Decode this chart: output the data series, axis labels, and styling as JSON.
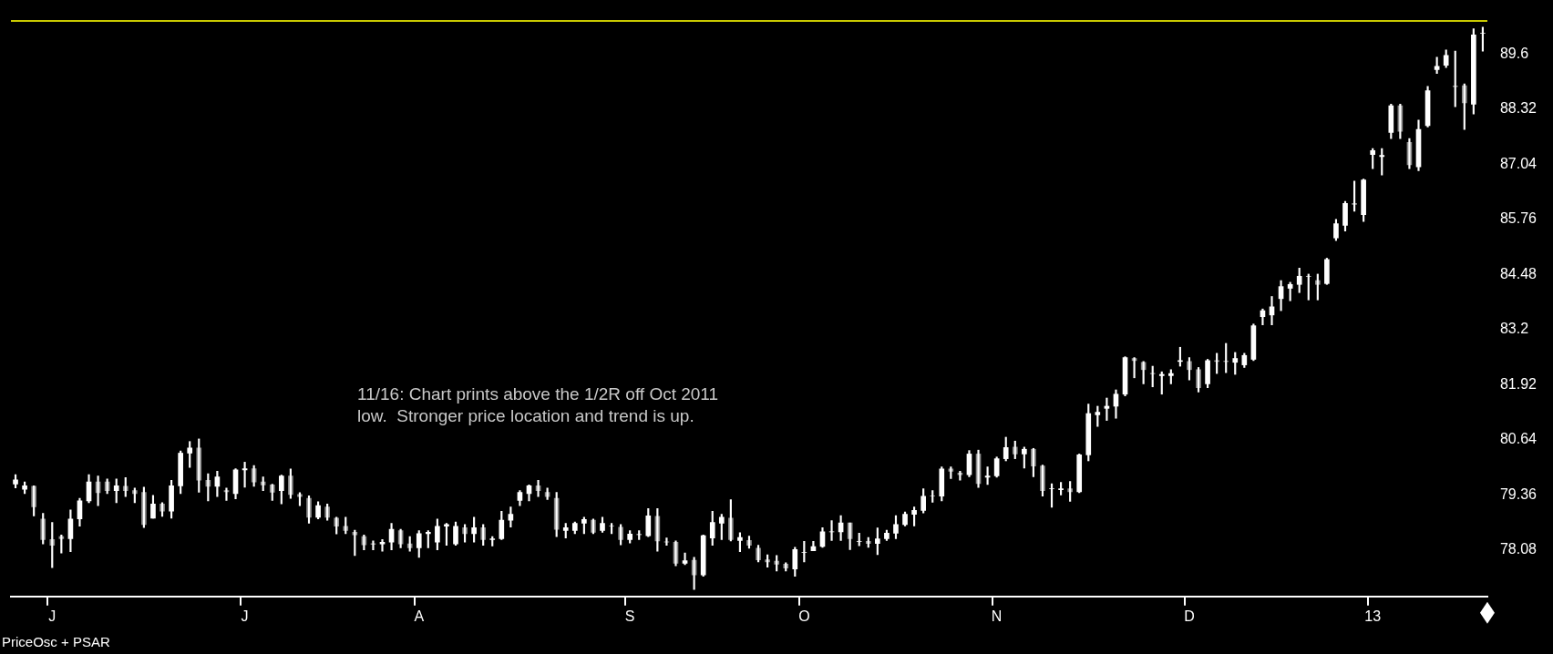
{
  "chart_data": {
    "type": "candlestick",
    "color": "#ffffff",
    "categories": [
      null,
      null,
      null,
      null,
      "J",
      null,
      null,
      null,
      null,
      null,
      null,
      null,
      null,
      null,
      null,
      null,
      null,
      null,
      null,
      null,
      null,
      null,
      null,
      null,
      null,
      "J",
      null,
      null,
      null,
      null,
      null,
      null,
      null,
      null,
      null,
      null,
      null,
      null,
      null,
      null,
      null,
      null,
      null,
      null,
      "A",
      null,
      null,
      null,
      null,
      null,
      null,
      null,
      null,
      null,
      null,
      null,
      null,
      null,
      null,
      null,
      null,
      null,
      null,
      null,
      null,
      null,
      null,
      "S",
      null,
      null,
      null,
      null,
      null,
      null,
      null,
      null,
      null,
      null,
      null,
      null,
      null,
      null,
      null,
      null,
      null,
      null,
      "O",
      null,
      null,
      null,
      null,
      null,
      null,
      null,
      null,
      null,
      null,
      null,
      null,
      null,
      null,
      null,
      null,
      null,
      null,
      null,
      null,
      "N",
      null,
      null,
      null,
      null,
      null,
      null,
      null,
      null,
      null,
      null,
      null,
      null,
      null,
      null,
      null,
      null,
      null,
      null,
      null,
      null,
      "D",
      null,
      null,
      null,
      null,
      null,
      null,
      null,
      null,
      null,
      null,
      null,
      null,
      null,
      null,
      null,
      null,
      null,
      null,
      null,
      "13",
      null,
      null,
      null,
      null,
      null,
      null,
      null,
      null,
      null,
      null,
      null,
      null
    ],
    "ohlc": [
      [
        79.61,
        79.83,
        79.52,
        79.71
      ],
      [
        79.49,
        79.66,
        79.39,
        79.57
      ],
      [
        79.56,
        79.57,
        78.87,
        79.08
      ],
      [
        78.8,
        78.93,
        78.22,
        78.32
      ],
      [
        78.32,
        78.72,
        77.67,
        78.19
      ],
      [
        78.39,
        78.43,
        78.01,
        78.34
      ],
      [
        78.34,
        79.01,
        78.04,
        78.8
      ],
      [
        78.8,
        79.28,
        78.63,
        79.22
      ],
      [
        79.22,
        79.83,
        79.18,
        79.66
      ],
      [
        79.66,
        79.8,
        79.11,
        79.41
      ],
      [
        79.66,
        79.73,
        79.39,
        79.46
      ],
      [
        79.46,
        79.73,
        79.18,
        79.57
      ],
      [
        79.56,
        79.76,
        79.32,
        79.46
      ],
      [
        79.46,
        79.52,
        79.18,
        79.39
      ],
      [
        79.42,
        79.54,
        78.6,
        78.67
      ],
      [
        78.82,
        79.35,
        78.82,
        79.15
      ],
      [
        79.15,
        79.18,
        78.86,
        78.98
      ],
      [
        78.98,
        79.7,
        78.82,
        79.57
      ],
      [
        79.57,
        80.38,
        79.39,
        80.33
      ],
      [
        80.33,
        80.6,
        80.0,
        80.45
      ],
      [
        80.45,
        80.66,
        79.42,
        79.7
      ],
      [
        79.7,
        79.85,
        79.22,
        79.56
      ],
      [
        79.56,
        79.91,
        79.32,
        79.78
      ],
      [
        79.46,
        79.52,
        79.23,
        79.43
      ],
      [
        79.39,
        79.97,
        79.27,
        79.94
      ],
      [
        79.94,
        80.12,
        79.54,
        79.97
      ],
      [
        79.97,
        80.04,
        79.56,
        79.66
      ],
      [
        79.66,
        79.78,
        79.46,
        79.59
      ],
      [
        79.59,
        79.61,
        79.23,
        79.42
      ],
      [
        79.46,
        79.82,
        79.15,
        79.8
      ],
      [
        79.8,
        79.96,
        79.28,
        79.37
      ],
      [
        79.37,
        79.41,
        79.11,
        79.32
      ],
      [
        79.28,
        79.34,
        78.7,
        78.84
      ],
      [
        78.84,
        79.2,
        78.8,
        79.11
      ],
      [
        79.08,
        79.15,
        78.77,
        78.84
      ],
      [
        78.82,
        78.84,
        78.45,
        78.63
      ],
      [
        78.63,
        78.84,
        78.46,
        78.53
      ],
      [
        78.49,
        78.54,
        77.95,
        78.43
      ],
      [
        78.39,
        78.43,
        78.08,
        78.2
      ],
      [
        78.22,
        78.29,
        78.08,
        78.22
      ],
      [
        78.22,
        78.32,
        78.05,
        78.26
      ],
      [
        78.26,
        78.7,
        78.08,
        78.56
      ],
      [
        78.53,
        78.56,
        78.13,
        78.22
      ],
      [
        78.22,
        78.39,
        78.05,
        78.13
      ],
      [
        78.13,
        78.53,
        77.91,
        78.46
      ],
      [
        78.46,
        78.53,
        78.13,
        78.49
      ],
      [
        78.26,
        78.8,
        78.08,
        78.63
      ],
      [
        78.63,
        78.7,
        78.19,
        78.67
      ],
      [
        78.22,
        78.73,
        78.19,
        78.63
      ],
      [
        78.6,
        78.67,
        78.26,
        78.46
      ],
      [
        78.46,
        78.84,
        78.26,
        78.6
      ],
      [
        78.6,
        78.67,
        78.19,
        78.32
      ],
      [
        78.32,
        78.39,
        78.17,
        78.34
      ],
      [
        78.34,
        78.98,
        78.32,
        78.77
      ],
      [
        78.77,
        79.08,
        78.61,
        78.91
      ],
      [
        79.23,
        79.46,
        79.11,
        79.42
      ],
      [
        79.39,
        79.59,
        79.22,
        79.57
      ],
      [
        79.57,
        79.7,
        79.32,
        79.46
      ],
      [
        79.42,
        79.52,
        79.25,
        79.32
      ],
      [
        79.28,
        79.42,
        78.39,
        78.56
      ],
      [
        78.53,
        78.7,
        78.36,
        78.6
      ],
      [
        78.53,
        78.73,
        78.46,
        78.7
      ],
      [
        78.7,
        78.84,
        78.46,
        78.79
      ],
      [
        78.77,
        78.8,
        78.46,
        78.49
      ],
      [
        78.53,
        78.84,
        78.49,
        78.7
      ],
      [
        78.63,
        78.7,
        78.46,
        78.63
      ],
      [
        78.61,
        78.67,
        78.2,
        78.32
      ],
      [
        78.32,
        78.53,
        78.24,
        78.45
      ],
      [
        78.45,
        78.53,
        78.32,
        78.43
      ],
      [
        78.41,
        79.04,
        78.39,
        78.87
      ],
      [
        78.86,
        79.04,
        78.05,
        78.29
      ],
      [
        78.27,
        78.36,
        78.19,
        78.26
      ],
      [
        78.26,
        78.29,
        77.71,
        77.77
      ],
      [
        77.77,
        78.01,
        77.74,
        77.83
      ],
      [
        77.84,
        77.91,
        77.16,
        77.5
      ],
      [
        77.5,
        78.43,
        77.47,
        78.41
      ],
      [
        78.36,
        78.98,
        78.19,
        78.72
      ],
      [
        78.7,
        78.91,
        78.32,
        78.84
      ],
      [
        78.82,
        79.25,
        78.29,
        78.32
      ],
      [
        78.3,
        78.48,
        78.04,
        78.37
      ],
      [
        78.3,
        78.4,
        78.12,
        78.19
      ],
      [
        78.12,
        78.19,
        77.8,
        77.85
      ],
      [
        77.85,
        77.97,
        77.68,
        77.8
      ],
      [
        77.82,
        77.95,
        77.59,
        77.75
      ],
      [
        77.75,
        77.78,
        77.59,
        77.66
      ],
      [
        77.64,
        78.14,
        77.47,
        78.09
      ],
      [
        78.02,
        78.28,
        77.8,
        78.02
      ],
      [
        78.06,
        78.28,
        78.06,
        78.16
      ],
      [
        78.16,
        78.6,
        78.14,
        78.5
      ],
      [
        78.5,
        78.76,
        78.3,
        78.5
      ],
      [
        78.5,
        78.88,
        78.3,
        78.71
      ],
      [
        78.71,
        78.71,
        78.09,
        78.34
      ],
      [
        78.28,
        78.47,
        78.18,
        78.28
      ],
      [
        78.28,
        78.37,
        78.14,
        78.23
      ],
      [
        78.23,
        78.59,
        77.97,
        78.34
      ],
      [
        78.34,
        78.54,
        78.3,
        78.47
      ],
      [
        78.47,
        78.88,
        78.34,
        78.67
      ],
      [
        78.67,
        78.96,
        78.64,
        78.91
      ],
      [
        78.91,
        79.08,
        78.64,
        79.0
      ],
      [
        79.0,
        79.5,
        78.94,
        79.33
      ],
      [
        79.33,
        79.46,
        79.19,
        79.33
      ],
      [
        79.33,
        80.01,
        79.22,
        79.96
      ],
      [
        79.96,
        80.01,
        79.74,
        79.91
      ],
      [
        79.87,
        79.91,
        79.7,
        79.83
      ],
      [
        79.83,
        80.39,
        79.78,
        80.31
      ],
      [
        80.31,
        80.4,
        79.53,
        79.62
      ],
      [
        79.77,
        80.01,
        79.6,
        79.8
      ],
      [
        79.8,
        80.24,
        79.77,
        80.2
      ],
      [
        80.2,
        80.7,
        80.15,
        80.46
      ],
      [
        80.47,
        80.61,
        80.2,
        80.31
      ],
      [
        80.31,
        80.47,
        79.98,
        80.42
      ],
      [
        80.42,
        80.44,
        79.78,
        80.03
      ],
      [
        80.03,
        80.05,
        79.33,
        79.46
      ],
      [
        79.5,
        79.62,
        79.07,
        79.5
      ],
      [
        79.48,
        79.65,
        79.36,
        79.5
      ],
      [
        79.5,
        79.67,
        79.21,
        79.43
      ],
      [
        79.43,
        80.31,
        79.41,
        80.29
      ],
      [
        80.29,
        81.47,
        80.15,
        81.25
      ],
      [
        81.22,
        81.42,
        80.95,
        81.28
      ],
      [
        81.37,
        81.61,
        81.09,
        81.42
      ],
      [
        81.42,
        81.8,
        81.14,
        81.7
      ],
      [
        81.7,
        82.57,
        81.66,
        82.55
      ],
      [
        82.53,
        82.55,
        82.08,
        82.48
      ],
      [
        82.44,
        82.46,
        81.94,
        82.27
      ],
      [
        82.18,
        82.35,
        81.87,
        82.18
      ],
      [
        82.13,
        82.22,
        81.7,
        82.16
      ],
      [
        82.13,
        82.27,
        81.94,
        82.18
      ],
      [
        82.46,
        82.79,
        82.35,
        82.48
      ],
      [
        82.46,
        82.55,
        82.03,
        82.27
      ],
      [
        82.27,
        82.32,
        81.75,
        81.85
      ],
      [
        81.94,
        82.51,
        81.85,
        82.48
      ],
      [
        82.48,
        82.65,
        82.18,
        82.46
      ],
      [
        82.46,
        82.88,
        82.2,
        82.46
      ],
      [
        82.44,
        82.67,
        82.16,
        82.53
      ],
      [
        82.38,
        82.65,
        82.32,
        82.6
      ],
      [
        82.51,
        83.33,
        82.48,
        83.29
      ],
      [
        83.5,
        83.68,
        83.31,
        83.64
      ],
      [
        83.54,
        83.97,
        83.31,
        83.73
      ],
      [
        83.92,
        84.34,
        83.64,
        84.2
      ],
      [
        84.16,
        84.3,
        83.87,
        84.25
      ],
      [
        84.25,
        84.63,
        84.06,
        84.44
      ],
      [
        84.44,
        84.49,
        83.89,
        84.44
      ],
      [
        84.34,
        84.49,
        83.89,
        84.25
      ],
      [
        84.27,
        84.86,
        84.25,
        84.83
      ],
      [
        85.33,
        85.76,
        85.27,
        85.66
      ],
      [
        85.62,
        86.18,
        85.49,
        86.13
      ],
      [
        86.13,
        86.65,
        85.95,
        86.11
      ],
      [
        85.87,
        86.7,
        85.71,
        86.68
      ],
      [
        87.27,
        87.41,
        86.94,
        87.36
      ],
      [
        87.22,
        87.41,
        86.79,
        87.25
      ],
      [
        87.78,
        88.44,
        87.64,
        88.4
      ],
      [
        88.4,
        88.44,
        87.64,
        87.81
      ],
      [
        87.55,
        87.64,
        86.94,
        87.03
      ],
      [
        86.98,
        88.07,
        86.89,
        87.85
      ],
      [
        87.94,
        88.85,
        87.91,
        88.75
      ],
      [
        89.24,
        89.53,
        89.15,
        89.32
      ],
      [
        89.34,
        89.7,
        89.29,
        89.57
      ],
      [
        88.85,
        89.67,
        88.38,
        88.85
      ],
      [
        88.87,
        88.91,
        87.85,
        88.47
      ],
      [
        88.44,
        90.19,
        88.21,
        90.05
      ],
      [
        90.09,
        90.23,
        89.67,
        90.09
      ]
    ],
    "colors": [
      "#ffffff",
      "#ffffff",
      "#8c8c8c",
      "#8c8c8c",
      "#8c8c8c",
      "#8c8c8c",
      "#ffffff",
      "#ffffff",
      "#ffffff",
      "#8c8c8c",
      "#8c8c8c",
      "#ffffff",
      "#8c8c8c",
      "#8c8c8c",
      "#8c8c8c",
      "#ffffff",
      "#8c8c8c",
      "#ffffff",
      "#ffffff",
      "#ffffff",
      "#8c8c8c",
      "#8c8c8c",
      "#ffffff",
      "#8c8c8c",
      "#ffffff",
      "#ffffff",
      "#8c8c8c",
      "#8c8c8c",
      "#8c8c8c",
      "#ffffff",
      "#8c8c8c",
      "#8c8c8c",
      "#8c8c8c",
      "#ffffff",
      "#8c8c8c",
      "#8c8c8c",
      "#8c8c8c",
      "#8c8c8c",
      "#8c8c8c",
      "#ffffff",
      "#ffffff",
      "#ffffff",
      "#8c8c8c",
      "#8c8c8c",
      "#ffffff",
      "#ffffff",
      "#ffffff",
      "#ffffff",
      "#ffffff",
      "#8c8c8c",
      "#ffffff",
      "#8c8c8c",
      "#ffffff",
      "#ffffff",
      "#ffffff",
      "#ffffff",
      "#ffffff",
      "#8c8c8c",
      "#8c8c8c",
      "#8c8c8c",
      "#ffffff",
      "#ffffff",
      "#ffffff",
      "#8c8c8c",
      "#ffffff",
      "#ffffff",
      "#8c8c8c",
      "#ffffff",
      "#8c8c8c",
      "#ffffff",
      "#8c8c8c",
      "#8c8c8c",
      "#8c8c8c",
      "#ffffff",
      "#8c8c8c",
      "#ffffff",
      "#ffffff",
      "#ffffff",
      "#8c8c8c",
      "#ffffff",
      "#8c8c8c",
      "#8c8c8c",
      "#8c8c8c",
      "#8c8c8c",
      "#8c8c8c",
      "#ffffff",
      "#ffffff",
      "#ffffff",
      "#ffffff",
      "#ffffff",
      "#ffffff",
      "#8c8c8c",
      "#ffffff",
      "#8c8c8c",
      "#ffffff",
      "#ffffff",
      "#ffffff",
      "#ffffff",
      "#ffffff",
      "#ffffff",
      "#ffffff",
      "#ffffff",
      "#8c8c8c",
      "#8c8c8c",
      "#ffffff",
      "#8c8c8c",
      "#ffffff",
      "#ffffff",
      "#ffffff",
      "#8c8c8c",
      "#ffffff",
      "#8c8c8c",
      "#8c8c8c",
      "#ffffff",
      "#ffffff",
      "#8c8c8c",
      "#ffffff",
      "#ffffff",
      "#ffffff",
      "#ffffff",
      "#ffffff",
      "#ffffff",
      "#8c8c8c",
      "#8c8c8c",
      "#ffffff",
      "#ffffff",
      "#ffffff",
      "#ffffff",
      "#8c8c8c",
      "#8c8c8c",
      "#ffffff",
      "#8c8c8c",
      "#ffffff",
      "#ffffff",
      "#ffffff",
      "#ffffff",
      "#ffffff",
      "#ffffff",
      "#ffffff",
      "#ffffff",
      "#ffffff",
      "#ffffff",
      "#8c8c8c",
      "#ffffff",
      "#ffffff",
      "#ffffff",
      "#8c8c8c",
      "#ffffff",
      "#ffffff",
      "#ffffff",
      "#ffffff",
      "#8c8c8c",
      "#8c8c8c",
      "#ffffff",
      "#ffffff",
      "#ffffff",
      "#ffffff",
      "#ffffff",
      "#8c8c8c",
      "#ffffff",
      "#ffffff"
    ],
    "ylim": [
      77.0,
      90.36
    ],
    "yticks": [
      78.08,
      79.36,
      80.64,
      81.92,
      83.2,
      84.48,
      85.76,
      87.04,
      88.32,
      89.6
    ],
    "annotations": [
      "11/16: Chart prints above the 1/2R off Oct 2011\nlow.  Stronger price location and trend is up.",
      "PriceOsc + PSAR"
    ]
  }
}
